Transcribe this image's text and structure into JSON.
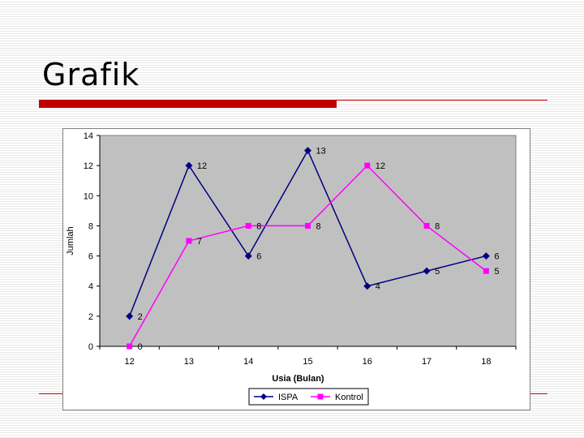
{
  "slide": {
    "title": "Grafik"
  },
  "chart_data": {
    "type": "line",
    "x": [
      12,
      13,
      14,
      15,
      16,
      17,
      18
    ],
    "series": [
      {
        "name": "ISPA",
        "values": [
          2,
          12,
          6,
          13,
          4,
          5,
          6
        ],
        "color": "#000080",
        "marker": "diamond"
      },
      {
        "name": "Kontrol",
        "values": [
          0,
          7,
          8,
          8,
          12,
          8,
          5
        ],
        "color": "#ff00ff",
        "marker": "square"
      }
    ],
    "xlabel": "Usia (Bulan)",
    "ylabel": "Jumlah",
    "ylim": [
      0,
      14
    ],
    "yticks": [
      0,
      2,
      4,
      6,
      8,
      10,
      12,
      14
    ],
    "grid": false,
    "legend_position": "bottom",
    "plot_background": "#c0c0c0",
    "data_labels": true
  }
}
